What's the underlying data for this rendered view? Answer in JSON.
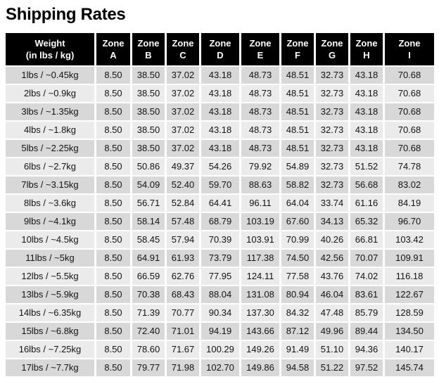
{
  "page": {
    "title": "Shipping Rates"
  },
  "colors": {
    "page_bg": "#ffffff",
    "header_bg": "#000000",
    "header_text": "#ffffff",
    "row_odd_bg": "#d8d8d8",
    "row_even_bg": "#ebebeb",
    "cell_text": "#121212"
  },
  "table": {
    "columns": [
      {
        "id": "weight",
        "line1": "Weight",
        "line2": "(in lbs / kg)"
      },
      {
        "id": "zone-a",
        "line1": "Zone",
        "line2": "A"
      },
      {
        "id": "zone-b",
        "line1": "Zone",
        "line2": "B"
      },
      {
        "id": "zone-c",
        "line1": "Zone",
        "line2": "C"
      },
      {
        "id": "zone-d",
        "line1": "Zone",
        "line2": "D"
      },
      {
        "id": "zone-e",
        "line1": "Zone",
        "line2": "E"
      },
      {
        "id": "zone-f",
        "line1": "Zone",
        "line2": "F"
      },
      {
        "id": "zone-g",
        "line1": "Zone",
        "line2": "G"
      },
      {
        "id": "zone-h",
        "line1": "Zone",
        "line2": "H"
      },
      {
        "id": "zone-i",
        "line1": "Zone",
        "line2": "I"
      }
    ],
    "rows": [
      {
        "weight": "1lbs / ~0.45kg",
        "rates": [
          "8.50",
          "38.50",
          "37.02",
          "43.18",
          "48.73",
          "48.51",
          "32.73",
          "43.18",
          "70.68"
        ]
      },
      {
        "weight": "2lbs / ~0.9kg",
        "rates": [
          "8.50",
          "38.50",
          "37.02",
          "43.18",
          "48.73",
          "48.51",
          "32.73",
          "43.18",
          "70.68"
        ]
      },
      {
        "weight": "3lbs / ~1.35kg",
        "rates": [
          "8.50",
          "38.50",
          "37.02",
          "43.18",
          "48.73",
          "48.51",
          "32.73",
          "43.18",
          "70.68"
        ]
      },
      {
        "weight": "4lbs / ~1.8kg",
        "rates": [
          "8.50",
          "38.50",
          "37.02",
          "43.18",
          "48.73",
          "48.51",
          "32.73",
          "43.18",
          "70.68"
        ]
      },
      {
        "weight": "5lbs / ~2.25kg",
        "rates": [
          "8.50",
          "38.50",
          "37.02",
          "43.18",
          "48.73",
          "48.51",
          "32.73",
          "43.18",
          "70.68"
        ]
      },
      {
        "weight": "6lbs / ~2.7kg",
        "rates": [
          "8.50",
          "50.86",
          "49.37",
          "54.26",
          "79.92",
          "54.89",
          "32.73",
          "51.52",
          "74.78"
        ]
      },
      {
        "weight": "7lbs / ~3.15kg",
        "rates": [
          "8.50",
          "54.09",
          "52.40",
          "59.70",
          "88.63",
          "58.82",
          "32.73",
          "56.68",
          "83.02"
        ]
      },
      {
        "weight": "8lbs / ~3.6kg",
        "rates": [
          "8.50",
          "56.71",
          "52.84",
          "64.41",
          "96.11",
          "64.04",
          "33.74",
          "61.16",
          "84.19"
        ]
      },
      {
        "weight": "9lbs / ~4.1kg",
        "rates": [
          "8.50",
          "58.14",
          "57.48",
          "68.79",
          "103.19",
          "67.60",
          "34.13",
          "65.32",
          "96.70"
        ]
      },
      {
        "weight": "10lbs / ~4.5kg",
        "rates": [
          "8.50",
          "58.45",
          "57.94",
          "70.39",
          "103.91",
          "70.99",
          "40.26",
          "66.81",
          "103.42"
        ]
      },
      {
        "weight": "11lbs / ~5kg",
        "rates": [
          "8.50",
          "64.91",
          "61.93",
          "73.79",
          "117.38",
          "74.50",
          "42.56",
          "70.07",
          "109.91"
        ]
      },
      {
        "weight": "12lbs / ~5.5kg",
        "rates": [
          "8.50",
          "66.59",
          "62.76",
          "77.95",
          "124.11",
          "77.58",
          "43.76",
          "74.02",
          "116.18"
        ]
      },
      {
        "weight": "13lbs / ~5.9kg",
        "rates": [
          "8.50",
          "70.38",
          "68.43",
          "88.04",
          "131.08",
          "80.94",
          "46.04",
          "83.61",
          "122.67"
        ]
      },
      {
        "weight": "14lbs / ~6.35kg",
        "rates": [
          "8.50",
          "71.39",
          "70.77",
          "90.34",
          "137.30",
          "84.32",
          "47.48",
          "85.79",
          "128.59"
        ]
      },
      {
        "weight": "15lbs / ~6.8kg",
        "rates": [
          "8.50",
          "72.40",
          "71.01",
          "94.19",
          "143.66",
          "87.12",
          "49.96",
          "89.44",
          "134.50"
        ]
      },
      {
        "weight": "16lbs / ~7.25kg",
        "rates": [
          "8.50",
          "78.60",
          "71.67",
          "100.29",
          "149.26",
          "91.49",
          "51.10",
          "94.36",
          "140.17"
        ]
      },
      {
        "weight": "17lbs / ~7.7kg",
        "rates": [
          "8.50",
          "79.77",
          "71.98",
          "102.70",
          "149.86",
          "94.58",
          "51.22",
          "97.52",
          "145.74"
        ]
      }
    ]
  }
}
